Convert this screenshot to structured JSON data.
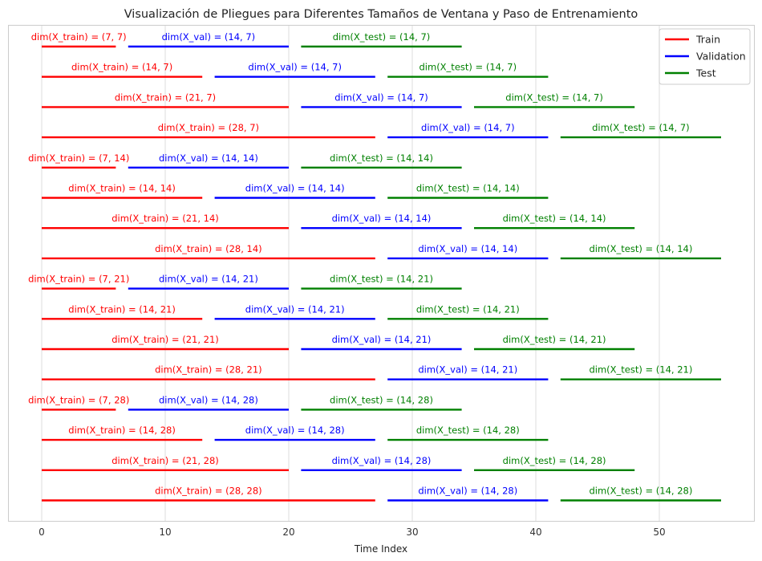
{
  "chart_data": {
    "type": "line",
    "title": "Visualización de Pliegues para Diferentes Tamaños de Ventana y Paso de Entrenamiento",
    "xlabel": "Time Index",
    "ylabel": "",
    "xlim": [
      -2.7,
      57.7
    ],
    "xticks": [
      0,
      10,
      20,
      30,
      40,
      50
    ],
    "grid": "x",
    "legend_placement": "top-right",
    "series": [
      {
        "name": "Train",
        "color": "#ff0000"
      },
      {
        "name": "Validation",
        "color": "#0000ff"
      },
      {
        "name": "Test",
        "color": "#008000"
      }
    ],
    "folds": [
      {
        "train": [
          0,
          6
        ],
        "val": [
          7,
          20
        ],
        "test": [
          21,
          34
        ],
        "train_label": "dim(X_train) = (7, 7)",
        "val_label": "dim(X_val) = (14, 7)",
        "test_label": "dim(X_test) = (14, 7)"
      },
      {
        "train": [
          0,
          13
        ],
        "val": [
          14,
          27
        ],
        "test": [
          28,
          41
        ],
        "train_label": "dim(X_train) = (14, 7)",
        "val_label": "dim(X_val) = (14, 7)",
        "test_label": "dim(X_test) = (14, 7)"
      },
      {
        "train": [
          0,
          20
        ],
        "val": [
          21,
          34
        ],
        "test": [
          35,
          48
        ],
        "train_label": "dim(X_train) = (21, 7)",
        "val_label": "dim(X_val) = (14, 7)",
        "test_label": "dim(X_test) = (14, 7)"
      },
      {
        "train": [
          0,
          27
        ],
        "val": [
          28,
          41
        ],
        "test": [
          42,
          55
        ],
        "train_label": "dim(X_train) = (28, 7)",
        "val_label": "dim(X_val) = (14, 7)",
        "test_label": "dim(X_test) = (14, 7)"
      },
      {
        "train": [
          0,
          6
        ],
        "val": [
          7,
          20
        ],
        "test": [
          21,
          34
        ],
        "train_label": "dim(X_train) = (7, 14)",
        "val_label": "dim(X_val) = (14, 14)",
        "test_label": "dim(X_test) = (14, 14)"
      },
      {
        "train": [
          0,
          13
        ],
        "val": [
          14,
          27
        ],
        "test": [
          28,
          41
        ],
        "train_label": "dim(X_train) = (14, 14)",
        "val_label": "dim(X_val) = (14, 14)",
        "test_label": "dim(X_test) = (14, 14)"
      },
      {
        "train": [
          0,
          20
        ],
        "val": [
          21,
          34
        ],
        "test": [
          35,
          48
        ],
        "train_label": "dim(X_train) = (21, 14)",
        "val_label": "dim(X_val) = (14, 14)",
        "test_label": "dim(X_test) = (14, 14)"
      },
      {
        "train": [
          0,
          27
        ],
        "val": [
          28,
          41
        ],
        "test": [
          42,
          55
        ],
        "train_label": "dim(X_train) = (28, 14)",
        "val_label": "dim(X_val) = (14, 14)",
        "test_label": "dim(X_test) = (14, 14)"
      },
      {
        "train": [
          0,
          6
        ],
        "val": [
          7,
          20
        ],
        "test": [
          21,
          34
        ],
        "train_label": "dim(X_train) = (7, 21)",
        "val_label": "dim(X_val) = (14, 21)",
        "test_label": "dim(X_test) = (14, 21)"
      },
      {
        "train": [
          0,
          13
        ],
        "val": [
          14,
          27
        ],
        "test": [
          28,
          41
        ],
        "train_label": "dim(X_train) = (14, 21)",
        "val_label": "dim(X_val) = (14, 21)",
        "test_label": "dim(X_test) = (14, 21)"
      },
      {
        "train": [
          0,
          20
        ],
        "val": [
          21,
          34
        ],
        "test": [
          35,
          48
        ],
        "train_label": "dim(X_train) = (21, 21)",
        "val_label": "dim(X_val) = (14, 21)",
        "test_label": "dim(X_test) = (14, 21)"
      },
      {
        "train": [
          0,
          27
        ],
        "val": [
          28,
          41
        ],
        "test": [
          42,
          55
        ],
        "train_label": "dim(X_train) = (28, 21)",
        "val_label": "dim(X_val) = (14, 21)",
        "test_label": "dim(X_test) = (14, 21)"
      },
      {
        "train": [
          0,
          6
        ],
        "val": [
          7,
          20
        ],
        "test": [
          21,
          34
        ],
        "train_label": "dim(X_train) = (7, 28)",
        "val_label": "dim(X_val) = (14, 28)",
        "test_label": "dim(X_test) = (14, 28)"
      },
      {
        "train": [
          0,
          13
        ],
        "val": [
          14,
          27
        ],
        "test": [
          28,
          41
        ],
        "train_label": "dim(X_train) = (14, 28)",
        "val_label": "dim(X_val) = (14, 28)",
        "test_label": "dim(X_test) = (14, 28)"
      },
      {
        "train": [
          0,
          20
        ],
        "val": [
          21,
          34
        ],
        "test": [
          35,
          48
        ],
        "train_label": "dim(X_train) = (21, 28)",
        "val_label": "dim(X_val) = (14, 28)",
        "test_label": "dim(X_test) = (14, 28)"
      },
      {
        "train": [
          0,
          27
        ],
        "val": [
          28,
          41
        ],
        "test": [
          42,
          55
        ],
        "train_label": "dim(X_train) = (28, 28)",
        "val_label": "dim(X_val) = (14, 28)",
        "test_label": "dim(X_test) = (14, 28)"
      }
    ]
  }
}
